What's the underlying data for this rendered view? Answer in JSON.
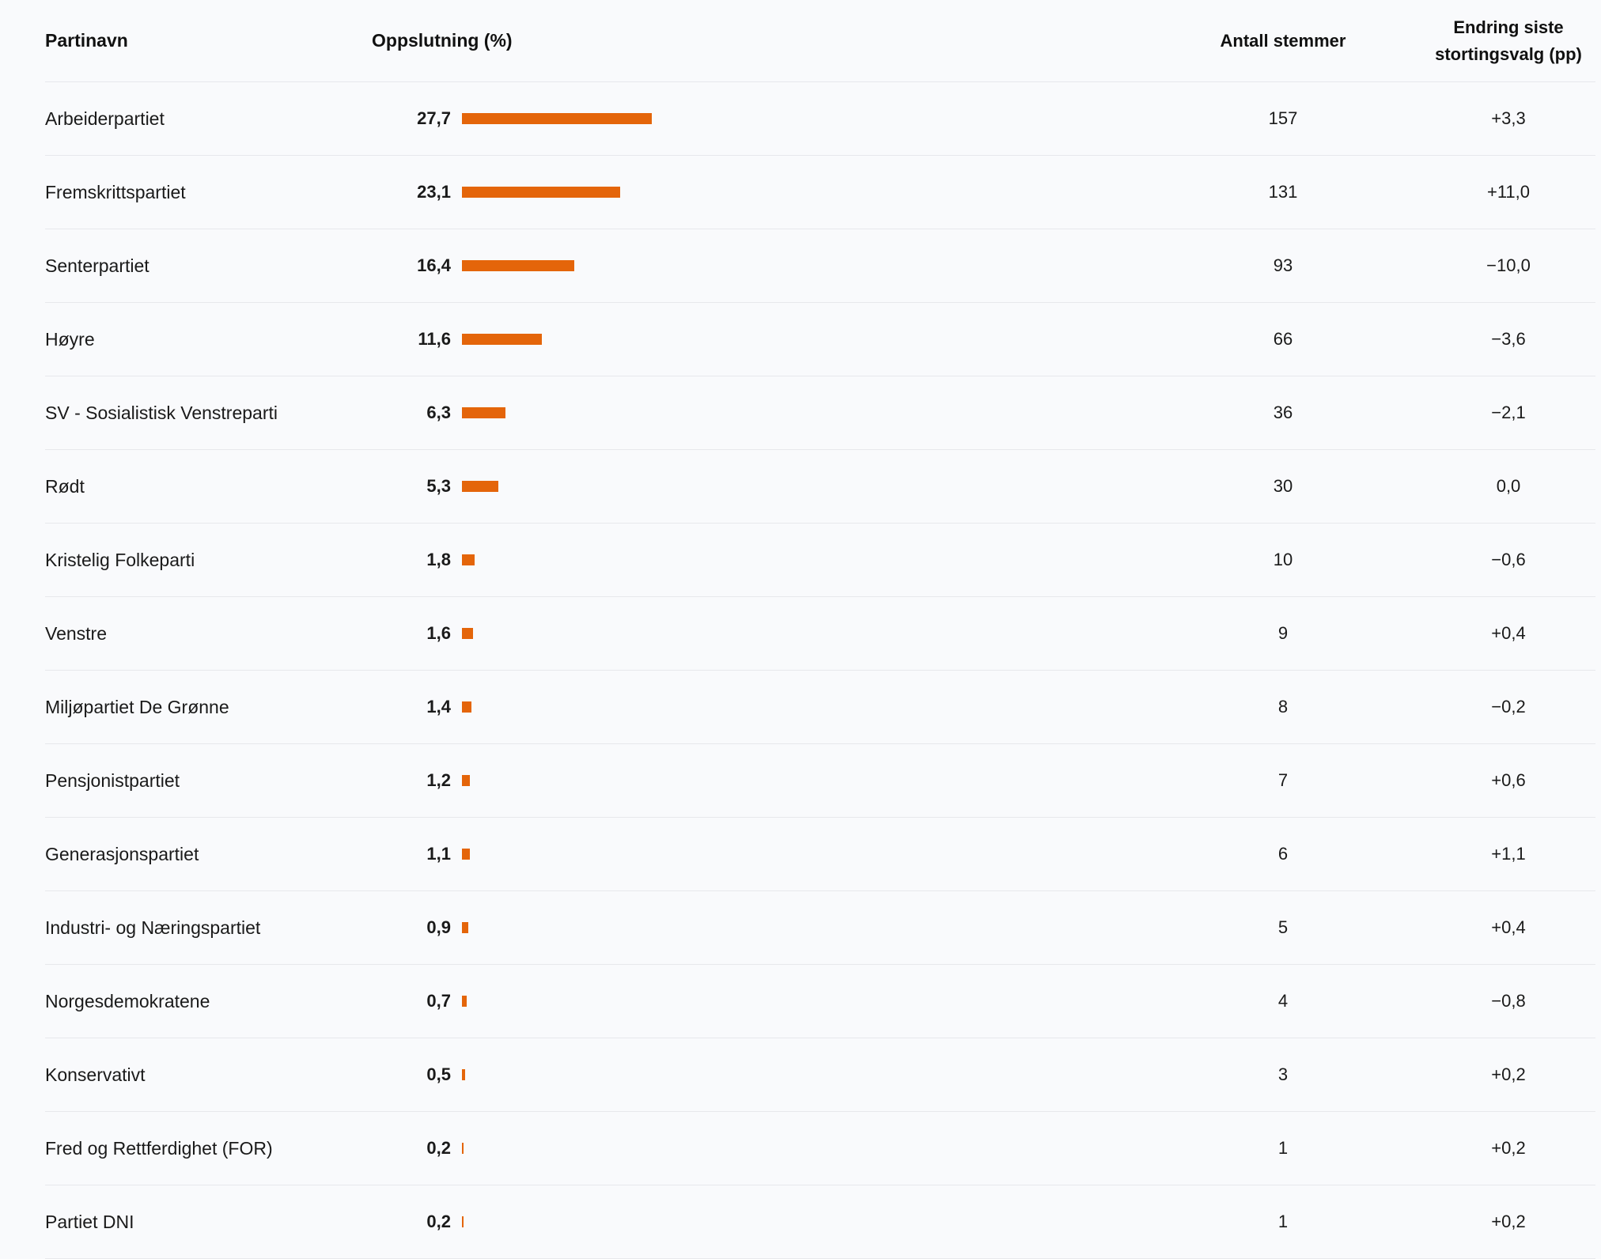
{
  "table": {
    "headers": {
      "party": "Partinavn",
      "share": "Oppslutning (%)",
      "votes": "Antall stemmer",
      "change_line1": "Endring siste",
      "change_line2": "stortingsvalg (pp)"
    },
    "bar_color": "#e4650a",
    "bar_scale_max_percent": 27.7,
    "rows": [
      {
        "party": "Arbeiderpartiet",
        "share": "27,7",
        "share_value": 27.7,
        "votes": "157",
        "change": "+3,3"
      },
      {
        "party": "Fremskrittspartiet",
        "share": "23,1",
        "share_value": 23.1,
        "votes": "131",
        "change": "+11,0"
      },
      {
        "party": "Senterpartiet",
        "share": "16,4",
        "share_value": 16.4,
        "votes": "93",
        "change": "−10,0"
      },
      {
        "party": "Høyre",
        "share": "11,6",
        "share_value": 11.6,
        "votes": "66",
        "change": "−3,6"
      },
      {
        "party": "SV - Sosialistisk Venstreparti",
        "share": "6,3",
        "share_value": 6.3,
        "votes": "36",
        "change": "−2,1"
      },
      {
        "party": "Rødt",
        "share": "5,3",
        "share_value": 5.3,
        "votes": "30",
        "change": "0,0"
      },
      {
        "party": "Kristelig Folkeparti",
        "share": "1,8",
        "share_value": 1.8,
        "votes": "10",
        "change": "−0,6"
      },
      {
        "party": "Venstre",
        "share": "1,6",
        "share_value": 1.6,
        "votes": "9",
        "change": "+0,4"
      },
      {
        "party": "Miljøpartiet De Grønne",
        "share": "1,4",
        "share_value": 1.4,
        "votes": "8",
        "change": "−0,2"
      },
      {
        "party": "Pensjonistpartiet",
        "share": "1,2",
        "share_value": 1.2,
        "votes": "7",
        "change": "+0,6"
      },
      {
        "party": "Generasjonspartiet",
        "share": "1,1",
        "share_value": 1.1,
        "votes": "6",
        "change": "+1,1"
      },
      {
        "party": "Industri- og Næringspartiet",
        "share": "0,9",
        "share_value": 0.9,
        "votes": "5",
        "change": "+0,4"
      },
      {
        "party": "Norgesdemokratene",
        "share": "0,7",
        "share_value": 0.7,
        "votes": "4",
        "change": "−0,8"
      },
      {
        "party": "Konservativt",
        "share": "0,5",
        "share_value": 0.5,
        "votes": "3",
        "change": "+0,2"
      },
      {
        "party": "Fred og Rettferdighet (FOR)",
        "share": "0,2",
        "share_value": 0.2,
        "votes": "1",
        "change": "+0,2"
      },
      {
        "party": "Partiet DNI",
        "share": "0,2",
        "share_value": 0.2,
        "votes": "1",
        "change": "+0,2"
      }
    ]
  }
}
